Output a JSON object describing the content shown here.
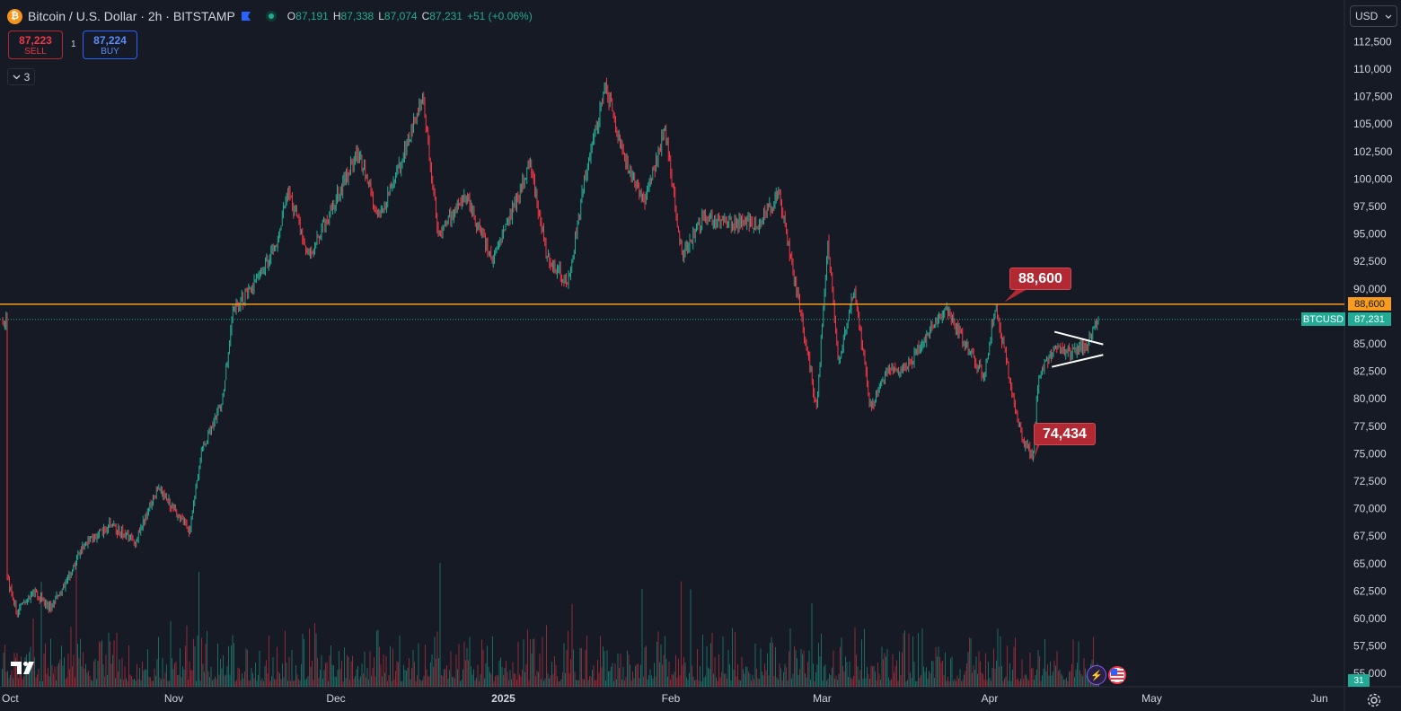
{
  "header": {
    "symbol_icon": "bitcoin-icon",
    "title": "Bitcoin / U.S. Dollar · 2h · BITSTAMP",
    "ohlc": [
      {
        "k": "O",
        "v": "87,191"
      },
      {
        "k": "H",
        "v": "87,338"
      },
      {
        "k": "L",
        "v": "87,074"
      },
      {
        "k": "C",
        "v": "87,231"
      }
    ],
    "change": "+51 (+0.06%)"
  },
  "trade": {
    "sell_price": "87,223",
    "sell_label": "SELL",
    "spread": "1",
    "buy_price": "87,224",
    "buy_label": "BUY"
  },
  "indicators_toggle": "3",
  "currency": "USD",
  "price_axis": {
    "ticks": [
      "112,500",
      "110,000",
      "107,500",
      "105,000",
      "102,500",
      "100,000",
      "97,500",
      "95,000",
      "92,500",
      "90,000",
      "85,000",
      "82,500",
      "80,000",
      "77,500",
      "75,000",
      "72,500",
      "70,000",
      "67,500",
      "65,000",
      "62,500",
      "60,000",
      "57,500",
      "55,000"
    ],
    "level_label": "88,600",
    "last_price_label": "87,231",
    "symbol_label": "BTCUSD"
  },
  "time_axis": {
    "labels": [
      "Oct",
      "Nov",
      "Dec",
      "2025",
      "Feb",
      "Mar",
      "Apr",
      "May",
      "Jun"
    ]
  },
  "annotations": {
    "high_label": "88,600",
    "low_label": "74,434"
  },
  "volume_count": "31",
  "colors": {
    "background": "#161a25",
    "up": "#22ab94",
    "down": "#f23645",
    "level_line": "#f89c1d",
    "callout": "#b22833"
  },
  "chart_data": {
    "type": "candlestick",
    "symbol": "BTCUSD",
    "interval": "2h",
    "ylim": [
      54000,
      113500
    ],
    "horizontal_level": 88600,
    "last_price": 87231,
    "series": [
      {
        "name": "BTCUSD",
        "points": [
          {
            "x": "2024-10-01",
            "y": 64000
          },
          {
            "x": "2024-10-03",
            "y": 60500
          },
          {
            "x": "2024-10-06",
            "y": 62500
          },
          {
            "x": "2024-10-09",
            "y": 61000
          },
          {
            "x": "2024-10-12",
            "y": 63000
          },
          {
            "x": "2024-10-15",
            "y": 66500
          },
          {
            "x": "2024-10-20",
            "y": 68500
          },
          {
            "x": "2024-10-25",
            "y": 67000
          },
          {
            "x": "2024-10-29",
            "y": 72000
          },
          {
            "x": "2024-11-01",
            "y": 70000
          },
          {
            "x": "2024-11-04",
            "y": 68000
          },
          {
            "x": "2024-11-06",
            "y": 75000
          },
          {
            "x": "2024-11-10",
            "y": 80000
          },
          {
            "x": "2024-11-12",
            "y": 88000
          },
          {
            "x": "2024-11-16",
            "y": 90500
          },
          {
            "x": "2024-11-20",
            "y": 94000
          },
          {
            "x": "2024-11-22",
            "y": 99000
          },
          {
            "x": "2024-11-26",
            "y": 93000
          },
          {
            "x": "2024-11-30",
            "y": 97000
          },
          {
            "x": "2024-12-05",
            "y": 102500
          },
          {
            "x": "2024-12-09",
            "y": 96500
          },
          {
            "x": "2024-12-13",
            "y": 101500
          },
          {
            "x": "2024-12-17",
            "y": 107500
          },
          {
            "x": "2024-12-20",
            "y": 95000
          },
          {
            "x": "2024-12-25",
            "y": 98500
          },
          {
            "x": "2024-12-30",
            "y": 92500
          },
          {
            "x": "2025-01-06",
            "y": 101500
          },
          {
            "x": "2025-01-09",
            "y": 93000
          },
          {
            "x": "2025-01-13",
            "y": 90500
          },
          {
            "x": "2025-01-16",
            "y": 100000
          },
          {
            "x": "2025-01-20",
            "y": 108500
          },
          {
            "x": "2025-01-23",
            "y": 102500
          },
          {
            "x": "2025-01-27",
            "y": 98000
          },
          {
            "x": "2025-01-31",
            "y": 104500
          },
          {
            "x": "2025-02-03",
            "y": 93000
          },
          {
            "x": "2025-02-07",
            "y": 96500
          },
          {
            "x": "2025-02-12",
            "y": 96000
          },
          {
            "x": "2025-02-17",
            "y": 96000
          },
          {
            "x": "2025-02-21",
            "y": 98500
          },
          {
            "x": "2025-02-25",
            "y": 88000
          },
          {
            "x": "2025-02-28",
            "y": 79000
          },
          {
            "x": "2025-03-02",
            "y": 94500
          },
          {
            "x": "2025-03-04",
            "y": 83500
          },
          {
            "x": "2025-03-07",
            "y": 90000
          },
          {
            "x": "2025-03-10",
            "y": 79000
          },
          {
            "x": "2025-03-13",
            "y": 82500
          },
          {
            "x": "2025-03-17",
            "y": 83000
          },
          {
            "x": "2025-03-20",
            "y": 85500
          },
          {
            "x": "2025-03-24",
            "y": 88200
          },
          {
            "x": "2025-03-28",
            "y": 84500
          },
          {
            "x": "2025-03-31",
            "y": 82000
          },
          {
            "x": "2025-04-02",
            "y": 88500
          },
          {
            "x": "2025-04-04",
            "y": 83500
          },
          {
            "x": "2025-04-07",
            "y": 76500
          },
          {
            "x": "2025-04-09",
            "y": 74500
          },
          {
            "x": "2025-04-10",
            "y": 82000
          },
          {
            "x": "2025-04-13",
            "y": 84500
          },
          {
            "x": "2025-04-16",
            "y": 84000
          },
          {
            "x": "2025-04-19",
            "y": 85000
          },
          {
            "x": "2025-04-21",
            "y": 87231
          }
        ]
      }
    ],
    "annotations": [
      {
        "label": "88,600",
        "x": "2025-04-02",
        "y": 88600
      },
      {
        "label": "74,434",
        "x": "2025-04-09",
        "y": 74434
      }
    ],
    "pattern": {
      "type": "triangle",
      "start": "2025-04-13",
      "end": "2025-04-22"
    }
  }
}
